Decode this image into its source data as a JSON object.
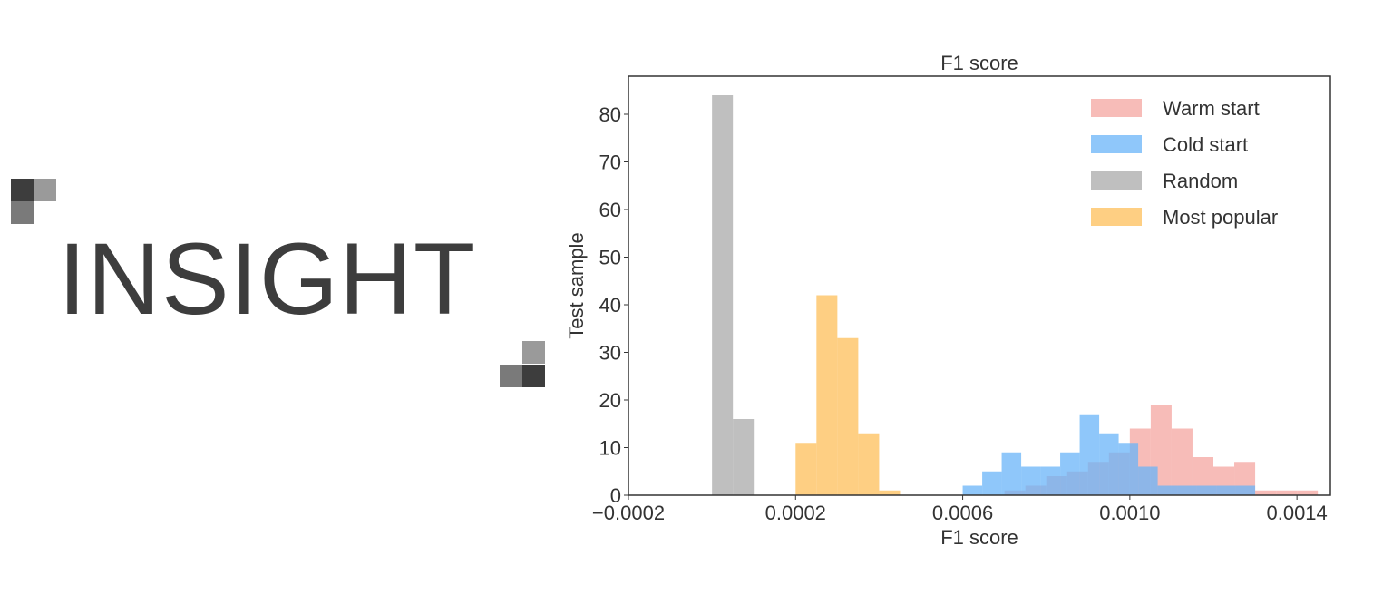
{
  "logo": {
    "text": "INSIGHT"
  },
  "colors": {
    "warm": "#f4a6a0",
    "cold": "#6ab4f8",
    "random": "#aaaaaa",
    "popular": "#fdbf5a",
    "axis": "#333333",
    "logo_dark": "#3d3d3d",
    "logo_mid": "#7a7a7a",
    "logo_light": "#9a9a9a"
  },
  "chart_data": {
    "type": "bar",
    "title": "F1 score",
    "xlabel": "F1 score",
    "ylabel": "Test sample",
    "xlim": [
      -0.0002,
      0.00148
    ],
    "ylim": [
      0,
      88
    ],
    "xticks": [
      -0.0002,
      0.0002,
      0.0006,
      0.001,
      0.0014
    ],
    "xtick_labels": [
      "−0.0002",
      "0.0002",
      "0.0006",
      "0.0010",
      "0.0014"
    ],
    "yticks": [
      0,
      10,
      20,
      30,
      40,
      50,
      60,
      70,
      80
    ],
    "ytick_labels": [
      "0",
      "10",
      "20",
      "30",
      "40",
      "50",
      "60",
      "70",
      "80"
    ],
    "legend_position": "top-right",
    "series": [
      {
        "name": "Random",
        "color_key": "random",
        "bins": [
          {
            "x0": 0.0,
            "x1": 5e-05,
            "count": 84
          },
          {
            "x0": 5e-05,
            "x1": 0.0001,
            "count": 16
          }
        ]
      },
      {
        "name": "Most popular",
        "color_key": "popular",
        "bins": [
          {
            "x0": 0.0002,
            "x1": 0.00025,
            "count": 11
          },
          {
            "x0": 0.00025,
            "x1": 0.0003,
            "count": 42
          },
          {
            "x0": 0.0003,
            "x1": 0.00035,
            "count": 33
          },
          {
            "x0": 0.00035,
            "x1": 0.0004,
            "count": 13
          },
          {
            "x0": 0.0004,
            "x1": 0.00045,
            "count": 1
          }
        ]
      },
      {
        "name": "Warm start",
        "color_key": "warm",
        "bins": [
          {
            "x0": 0.0007,
            "x1": 0.00075,
            "count": 1
          },
          {
            "x0": 0.00075,
            "x1": 0.0008,
            "count": 2
          },
          {
            "x0": 0.0008,
            "x1": 0.00085,
            "count": 4
          },
          {
            "x0": 0.00085,
            "x1": 0.0009,
            "count": 5
          },
          {
            "x0": 0.0009,
            "x1": 0.00095,
            "count": 7
          },
          {
            "x0": 0.00095,
            "x1": 0.001,
            "count": 9
          },
          {
            "x0": 0.001,
            "x1": 0.00105,
            "count": 14
          },
          {
            "x0": 0.00105,
            "x1": 0.0011,
            "count": 19
          },
          {
            "x0": 0.0011,
            "x1": 0.00115,
            "count": 14
          },
          {
            "x0": 0.00115,
            "x1": 0.0012,
            "count": 8
          },
          {
            "x0": 0.0012,
            "x1": 0.00125,
            "count": 6
          },
          {
            "x0": 0.00125,
            "x1": 0.0013,
            "count": 7
          },
          {
            "x0": 0.0013,
            "x1": 0.00135,
            "count": 1
          },
          {
            "x0": 0.00135,
            "x1": 0.0014,
            "count": 1
          },
          {
            "x0": 0.0014,
            "x1": 0.00145,
            "count": 1
          }
        ]
      },
      {
        "name": "Cold start",
        "color_key": "cold",
        "bins": [
          {
            "x0": 0.0006,
            "x1": 0.0006467,
            "count": 2
          },
          {
            "x0": 0.0006467,
            "x1": 0.0006933,
            "count": 5
          },
          {
            "x0": 0.0006933,
            "x1": 0.00074,
            "count": 9
          },
          {
            "x0": 0.00074,
            "x1": 0.0007867,
            "count": 6
          },
          {
            "x0": 0.0007867,
            "x1": 0.0008333,
            "count": 6
          },
          {
            "x0": 0.0008333,
            "x1": 0.00088,
            "count": 9
          },
          {
            "x0": 0.00088,
            "x1": 0.0009267,
            "count": 17
          },
          {
            "x0": 0.0009267,
            "x1": 0.0009733,
            "count": 13
          },
          {
            "x0": 0.0009733,
            "x1": 0.00102,
            "count": 11
          },
          {
            "x0": 0.00102,
            "x1": 0.0010667,
            "count": 6
          },
          {
            "x0": 0.0010667,
            "x1": 0.0011133,
            "count": 2
          },
          {
            "x0": 0.0011133,
            "x1": 0.00116,
            "count": 2
          },
          {
            "x0": 0.00116,
            "x1": 0.0012067,
            "count": 2
          },
          {
            "x0": 0.0012067,
            "x1": 0.0012533,
            "count": 2
          },
          {
            "x0": 0.0012533,
            "x1": 0.0013,
            "count": 2
          }
        ]
      }
    ],
    "legend_order": [
      "Warm start",
      "Cold start",
      "Random",
      "Most popular"
    ]
  }
}
